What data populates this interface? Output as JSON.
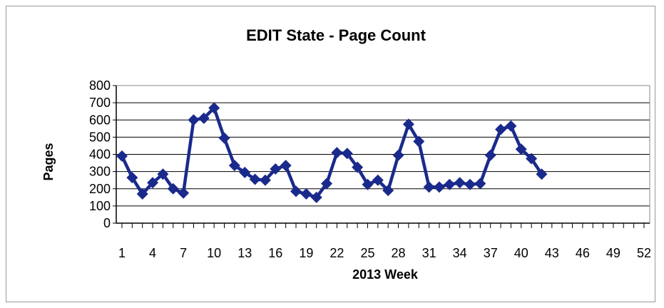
{
  "chart_data": {
    "type": "line",
    "title": "EDIT State - Page Count",
    "xlabel": "2013 Week",
    "ylabel": "Pages",
    "xlim": [
      1,
      52
    ],
    "ylim": [
      0,
      800
    ],
    "y_ticks": [
      0,
      100,
      200,
      300,
      400,
      500,
      600,
      700,
      800
    ],
    "x_tick_labels": [
      1,
      4,
      7,
      10,
      13,
      16,
      19,
      22,
      25,
      28,
      31,
      34,
      37,
      40,
      43,
      46,
      49,
      52
    ],
    "grid": "horizontal",
    "legend": "none",
    "series": [
      {
        "color": "#1a2a8c",
        "marker": "diamond",
        "x": [
          1,
          2,
          3,
          4,
          5,
          6,
          7,
          8,
          9,
          10,
          11,
          12,
          13,
          14,
          15,
          16,
          17,
          18,
          19,
          20,
          21,
          22,
          23,
          24,
          25,
          26,
          27,
          28,
          29,
          30,
          31,
          32,
          33,
          34,
          35,
          36,
          37,
          38,
          39,
          40,
          41,
          42
        ],
        "values": [
          390,
          265,
          170,
          235,
          285,
          200,
          175,
          600,
          610,
          670,
          495,
          335,
          295,
          255,
          250,
          315,
          335,
          185,
          170,
          150,
          230,
          410,
          405,
          325,
          225,
          250,
          190,
          395,
          575,
          475,
          210,
          210,
          225,
          235,
          225,
          230,
          395,
          545,
          565,
          430,
          375,
          285
        ]
      }
    ]
  }
}
